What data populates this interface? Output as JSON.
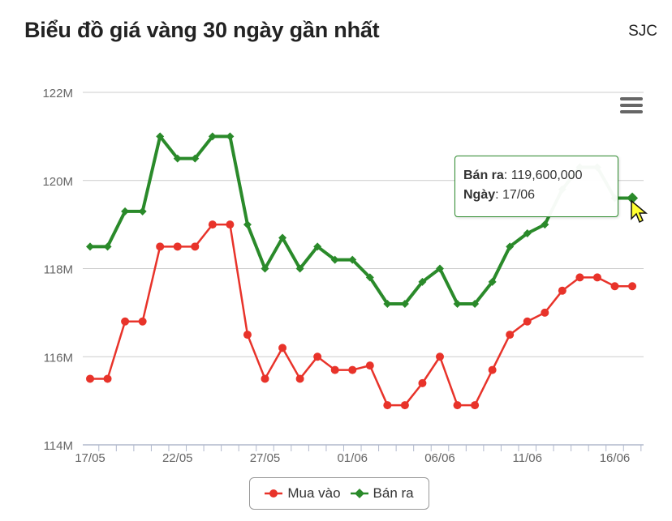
{
  "header": {
    "title": "Biểu đồ giá vàng 30 ngày gần nhất",
    "brand": "SJC"
  },
  "tooltip": {
    "series_label": "Bán ra",
    "value": "119,600,000",
    "date_label": "Ngày",
    "date": "17/06"
  },
  "colors": {
    "buy": "#e8332a",
    "sell": "#2a8a2a",
    "grid": "#cccccc"
  },
  "chart_data": {
    "type": "line",
    "x": [
      "17/05",
      "18/05",
      "19/05",
      "20/05",
      "21/05",
      "22/05",
      "23/05",
      "24/05",
      "25/05",
      "26/05",
      "27/05",
      "28/05",
      "29/05",
      "30/05",
      "31/05",
      "01/06",
      "02/06",
      "03/06",
      "04/06",
      "05/06",
      "06/06",
      "07/06",
      "08/06",
      "09/06",
      "10/06",
      "11/06",
      "12/06",
      "13/06",
      "14/06",
      "15/06",
      "16/06",
      "17/06"
    ],
    "x_ticks": [
      "17/05",
      "22/05",
      "27/05",
      "01/06",
      "06/06",
      "11/06",
      "16/06"
    ],
    "y_ticks": [
      "114M",
      "116M",
      "118M",
      "120M",
      "122M"
    ],
    "ylim": [
      114000000,
      122000000
    ],
    "series": [
      {
        "name": "Mua vào",
        "values": [
          115500000,
          115500000,
          116800000,
          116800000,
          118500000,
          118500000,
          118500000,
          119000000,
          119000000,
          116500000,
          115500000,
          116200000,
          115500000,
          116000000,
          115700000,
          115700000,
          115800000,
          114900000,
          114900000,
          115400000,
          116000000,
          114900000,
          114900000,
          115700000,
          116500000,
          116800000,
          117000000,
          117500000,
          117800000,
          117800000,
          117600000,
          117600000
        ]
      },
      {
        "name": "Bán ra",
        "values": [
          118500000,
          118500000,
          119300000,
          119300000,
          121000000,
          120500000,
          120500000,
          121000000,
          121000000,
          119000000,
          118000000,
          118700000,
          118000000,
          118500000,
          118200000,
          118200000,
          117800000,
          117200000,
          117200000,
          117700000,
          118000000,
          117200000,
          117200000,
          117700000,
          118500000,
          118800000,
          119000000,
          119800000,
          120300000,
          120300000,
          119600000,
          119600000
        ]
      }
    ],
    "grid": true,
    "legend": "bottom-center"
  }
}
